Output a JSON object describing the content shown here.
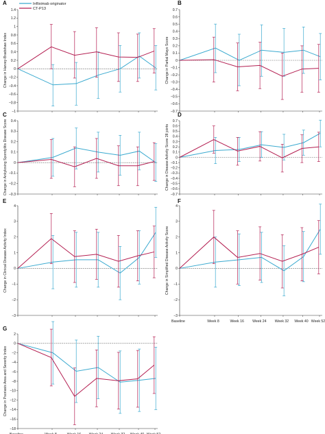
{
  "legend": {
    "items": [
      {
        "label": "Infliximab originator",
        "color": "#39a9cf"
      },
      {
        "label": "CT-P13",
        "color": "#b31d50"
      }
    ]
  },
  "x_tick_labels": [
    "Baseline",
    "Week 8",
    "Week 16",
    "Week 24",
    "Week 32",
    "Week 40",
    "Week 52"
  ],
  "chart_data": [
    {
      "panel": "A",
      "type": "line",
      "ylabel": "Change in Harvey-Bradshaw Index",
      "ylim": [
        -1.0,
        1.4
      ],
      "yticks": [
        -1.0,
        -0.8,
        -0.6,
        -0.4,
        -0.2,
        0,
        0.2,
        0.4,
        0.6,
        0.8,
        1.0,
        1.2,
        1.4
      ],
      "x": [
        0,
        8,
        16,
        24,
        32,
        40,
        52
      ],
      "series": [
        {
          "name": "Infliximab originator",
          "values": [
            0,
            -0.38,
            -0.35,
            -0.15,
            0.0,
            0.3,
            0.02
          ],
          "err_low": [
            0,
            -0.88,
            -0.86,
            -0.7,
            -0.55,
            -0.22,
            -0.5
          ],
          "err_high": [
            0,
            0.1,
            0.15,
            0.4,
            0.55,
            0.85,
            0.55
          ]
        },
        {
          "name": "CT-P13",
          "values": [
            0,
            0.52,
            0.32,
            0.4,
            0.28,
            0.27,
            0.42
          ],
          "err_low": [
            0,
            0.0,
            -0.22,
            -0.2,
            -0.3,
            -0.3,
            -0.1
          ],
          "err_high": [
            0,
            1.05,
            0.88,
            0.97,
            0.85,
            0.82,
            0.95
          ]
        }
      ]
    },
    {
      "panel": "B",
      "type": "line",
      "ylabel": "Change in Partial Mayo Score",
      "ylim": [
        -0.7,
        0.7
      ],
      "yticks": [
        -0.7,
        -0.6,
        -0.5,
        -0.4,
        -0.3,
        -0.2,
        -0.1,
        0,
        0.1,
        0.2,
        0.3,
        0.4,
        0.5,
        0.6,
        0.7
      ],
      "x": [
        0,
        8,
        16,
        24,
        32,
        40,
        52
      ],
      "series": [
        {
          "name": "Infliximab originator",
          "values": [
            0,
            0.17,
            0.0,
            0.14,
            0.11,
            0.14,
            0.05
          ],
          "err_low": [
            0,
            -0.17,
            -0.35,
            -0.22,
            -0.22,
            -0.18,
            -0.27
          ],
          "err_high": [
            0,
            0.5,
            0.36,
            0.49,
            0.44,
            0.46,
            0.37
          ]
        },
        {
          "name": "CT-P13",
          "values": [
            0,
            0.01,
            -0.09,
            -0.07,
            -0.22,
            -0.12,
            -0.11
          ],
          "err_low": [
            0,
            -0.3,
            -0.42,
            -0.39,
            -0.54,
            -0.44,
            -0.44
          ],
          "err_high": [
            0,
            0.32,
            0.24,
            0.25,
            0.1,
            0.2,
            0.22
          ]
        }
      ]
    },
    {
      "panel": "C",
      "type": "line",
      "ylabel": "Change in Ankylosing Spondylitis Disease Score",
      "ylim": [
        -0.3,
        0.4
      ],
      "yticks": [
        -0.3,
        -0.2,
        -0.1,
        0,
        0.1,
        0.2,
        0.3,
        0.4
      ],
      "x": [
        0,
        8,
        16,
        24,
        32,
        40,
        52
      ],
      "series": [
        {
          "name": "Infliximab originator",
          "values": [
            0,
            0.05,
            0.14,
            0.1,
            0.07,
            0.11,
            0.0
          ],
          "err_low": [
            0,
            -0.13,
            -0.06,
            -0.09,
            -0.12,
            -0.07,
            -0.18
          ],
          "err_high": [
            0,
            0.23,
            0.33,
            0.29,
            0.26,
            0.29,
            0.18
          ]
        },
        {
          "name": "CT-P13",
          "values": [
            0,
            0.03,
            -0.04,
            0.04,
            -0.03,
            -0.03,
            0.01
          ],
          "err_low": [
            0,
            -0.15,
            -0.23,
            -0.15,
            -0.22,
            -0.22,
            -0.17
          ],
          "err_high": [
            0,
            0.22,
            0.15,
            0.23,
            0.16,
            0.15,
            0.19
          ]
        }
      ]
    },
    {
      "panel": "D",
      "type": "line",
      "ylabel": "Change in Disease Activity Score 28 joints",
      "ylim": [
        -0.7,
        0.7
      ],
      "yticks": [
        -0.7,
        -0.6,
        -0.5,
        -0.4,
        -0.3,
        -0.2,
        -0.1,
        0,
        0.1,
        0.2,
        0.3,
        0.4,
        0.5,
        0.6,
        0.7
      ],
      "x": [
        0,
        8,
        16,
        24,
        32,
        40,
        52
      ],
      "series": [
        {
          "name": "Infliximab originator",
          "values": [
            0,
            0.13,
            0.15,
            0.24,
            0.19,
            0.28,
            0.46
          ],
          "err_low": [
            0,
            -0.12,
            -0.08,
            0.0,
            -0.05,
            0.04,
            0.2
          ],
          "err_high": [
            0,
            0.38,
            0.38,
            0.49,
            0.44,
            0.52,
            0.71
          ]
        },
        {
          "name": "CT-P13",
          "values": [
            0,
            0.34,
            0.12,
            0.21,
            -0.01,
            0.17,
            0.2
          ],
          "err_low": [
            0,
            0.08,
            -0.15,
            -0.07,
            -0.28,
            -0.1,
            -0.08
          ],
          "err_high": [
            0,
            0.6,
            0.38,
            0.49,
            0.25,
            0.43,
            0.48
          ]
        }
      ]
    },
    {
      "panel": "E",
      "type": "line",
      "ylabel": "Change in Clinical Disease Activity Index",
      "ylim": [
        -3,
        4
      ],
      "yticks": [
        -3,
        -2,
        -1,
        0,
        1,
        2,
        3,
        4
      ],
      "x": [
        0,
        8,
        16,
        24,
        32,
        40,
        52
      ],
      "series": [
        {
          "name": "Infliximab originator",
          "values": [
            0,
            0.4,
            0.55,
            0.55,
            -0.3,
            0.7,
            2.3
          ],
          "err_low": [
            0,
            -1.3,
            -1.2,
            -1.2,
            -2.0,
            -1.0,
            0.7
          ],
          "err_high": [
            0,
            2.1,
            2.3,
            2.3,
            1.4,
            2.4,
            3.9
          ]
        },
        {
          "name": "CT-P13",
          "values": [
            0,
            1.9,
            0.75,
            0.9,
            0.45,
            0.8,
            1.05
          ],
          "err_low": [
            0,
            0.3,
            -0.9,
            -0.7,
            -1.2,
            -0.8,
            -0.6
          ],
          "err_high": [
            0,
            3.5,
            2.4,
            2.5,
            2.1,
            2.4,
            2.7
          ]
        }
      ]
    },
    {
      "panel": "F",
      "type": "line",
      "ylabel": "Change in Simplified Disease Activity Score",
      "ylim": [
        -3,
        4
      ],
      "yticks": [
        -3,
        -2,
        -1,
        0,
        1,
        2,
        3,
        4
      ],
      "x": [
        0,
        8,
        16,
        24,
        32,
        40,
        52
      ],
      "series": [
        {
          "name": "Infliximab originator",
          "values": [
            0,
            0.4,
            0.55,
            0.7,
            -0.15,
            0.75,
            2.5
          ],
          "err_low": [
            0,
            -1.2,
            -1.1,
            -0.9,
            -1.75,
            -0.85,
            0.9
          ],
          "err_high": [
            0,
            2.0,
            2.2,
            2.3,
            1.45,
            2.35,
            4.1
          ]
        },
        {
          "name": "CT-P13",
          "values": [
            0,
            2.0,
            0.7,
            0.95,
            0.45,
            0.9,
            1.35
          ],
          "err_low": [
            0,
            0.3,
            -1.0,
            -0.75,
            -1.25,
            -0.8,
            -0.35
          ],
          "err_high": [
            0,
            3.7,
            2.4,
            2.65,
            2.15,
            2.6,
            3.05
          ]
        }
      ]
    },
    {
      "panel": "G",
      "type": "line",
      "ylabel": "Change in Psoriasis Area and Severity Index",
      "ylim": [
        -18,
        2
      ],
      "yticks": [
        -18,
        -16,
        -14,
        -12,
        -10,
        -8,
        -6,
        -4,
        -2,
        0,
        2
      ],
      "x": [
        0,
        8,
        16,
        24,
        32,
        40,
        52
      ],
      "series": [
        {
          "name": "Infliximab originator",
          "values": [
            0,
            -2.0,
            -5.9,
            -5.1,
            -8.2,
            -7.8,
            -7.4
          ],
          "err_low": [
            0,
            -8.6,
            -12.5,
            -11.7,
            -14.8,
            -14.4,
            -14.0
          ],
          "err_high": [
            0,
            4.6,
            0.7,
            1.5,
            -1.6,
            -1.2,
            -0.8
          ]
        },
        {
          "name": "CT-P13",
          "values": [
            0,
            -3.0,
            -11.2,
            -7.4,
            -7.9,
            -7.5,
            -4.6
          ],
          "err_low": [
            0,
            -9.0,
            -17.2,
            -13.4,
            -13.9,
            -13.5,
            -10.6
          ],
          "err_high": [
            0,
            3.0,
            -5.2,
            -1.4,
            -1.9,
            -1.5,
            1.4
          ]
        }
      ]
    }
  ]
}
